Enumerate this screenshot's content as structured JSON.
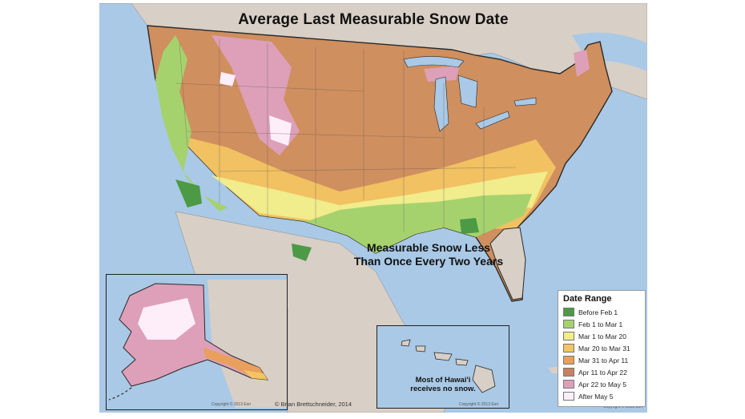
{
  "map": {
    "title": "Average Last Measurable Snow Date",
    "annotation_line1": "Measurable Snow Less",
    "annotation_line2": "Than Once Every Two Years",
    "hawaii_note_line1": "Most of Hawai'i",
    "hawaii_note_line2": "receives no snow.",
    "credit": "© Brian Brettschneider, 2014",
    "copyright_alaska": "Copyright © 2013 Esri",
    "copyright_hawaii": "Copyright © 2013 Esri",
    "copyright_main": "Copyright © 2013 Esri"
  },
  "legend": {
    "title": "Date Range",
    "items": [
      {
        "label": "Before Feb 1",
        "color": "#4c9a45"
      },
      {
        "label": "Feb 1 to Mar 1",
        "color": "#a6d26e"
      },
      {
        "label": "Mar 1 to Mar 20",
        "color": "#f1ec8c"
      },
      {
        "label": "Mar 20 to Mar 31",
        "color": "#f2c462"
      },
      {
        "label": "Mar 31 to Apr 11",
        "color": "#e8a05c"
      },
      {
        "label": "Apr 11 to Apr 22",
        "color": "#c98060"
      },
      {
        "label": "Apr 22 to May 5",
        "color": "#dda0b8"
      },
      {
        "label": "After May 5",
        "color": "#fdeefa"
      }
    ]
  },
  "colors": {
    "water": "#a9c9e6",
    "land": "#d8cfc6"
  }
}
